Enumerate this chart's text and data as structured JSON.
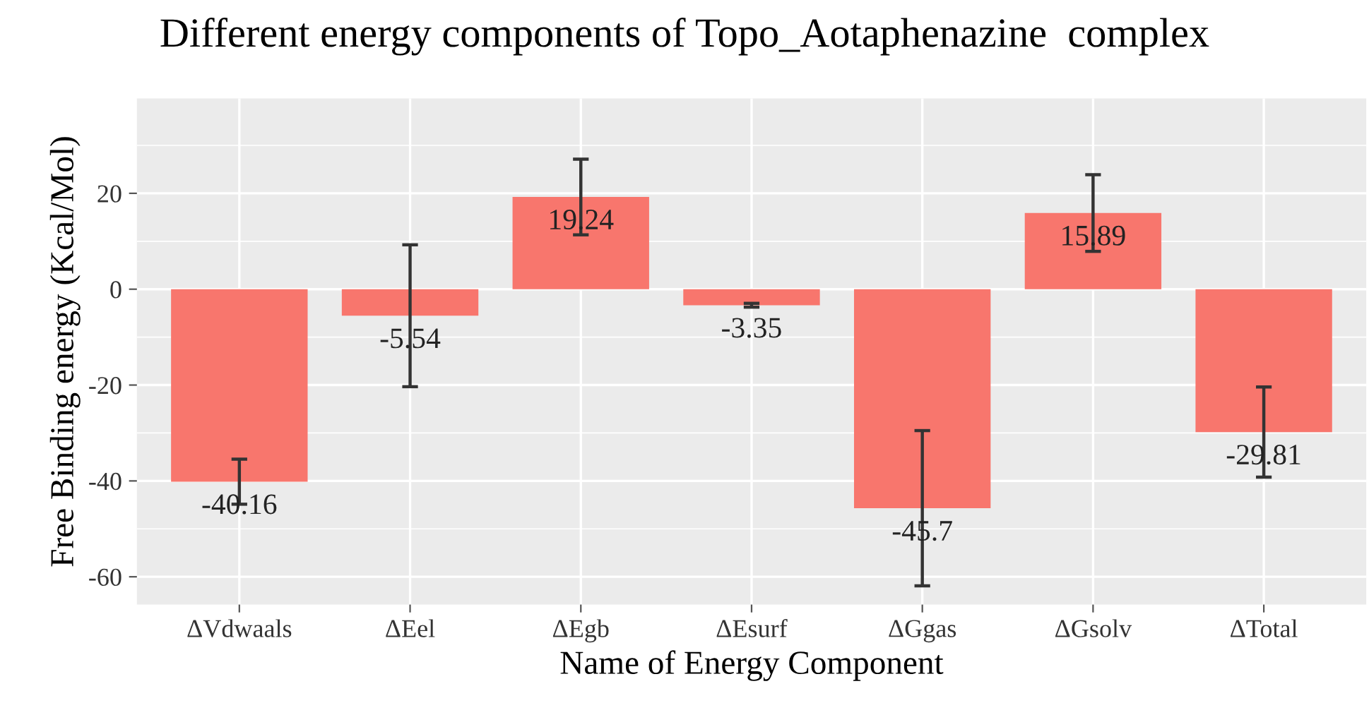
{
  "chart_data": {
    "type": "bar",
    "title": "Different energy components of Topo_Aotaphenazine  complex",
    "xlabel": "Name of Energy Component",
    "ylabel": "Free Binding energy (Kcal/Mol)",
    "categories": [
      "ΔVdwaals",
      "ΔEel",
      "ΔEgb",
      "ΔEsurf",
      "ΔGgas",
      "ΔGsolv",
      "ΔTotal"
    ],
    "values": [
      -40.16,
      -5.54,
      19.24,
      -3.35,
      -45.7,
      15.89,
      -29.81
    ],
    "errors": [
      4.7,
      14.8,
      7.9,
      0.4,
      16.2,
      8.0,
      9.4
    ],
    "color": "#f8766d",
    "ylim": [
      -65.8,
      39.8
    ],
    "yticks": [
      -60,
      -40,
      -20,
      0,
      20
    ],
    "grid": true,
    "data_labels": true
  }
}
